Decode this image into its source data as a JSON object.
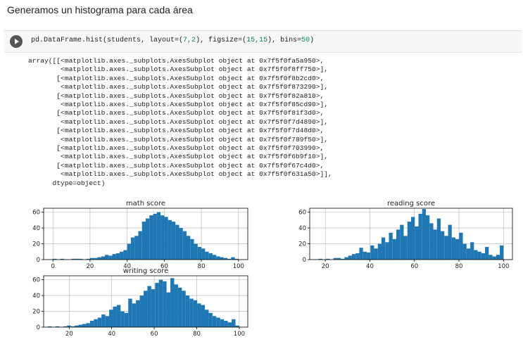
{
  "markdown": {
    "text": "Generamos un histograma para cada área"
  },
  "code_cell": {
    "prefix": "pd.DataFrame.hist(students, layout=(",
    "layout_val": "7,2",
    "mid": "), figsize=(",
    "figsize_val": "15,15",
    "mid2": "), bins=",
    "bins_val": "50",
    "suffix": ")"
  },
  "output_lines": [
    "array([[<matplotlib.axes._subplots.AxesSubplot object at 0x7f5f0fa5a950>,",
    "        <matplotlib.axes._subplots.AxesSubplot object at 0x7f5f0f8ff750>],",
    "       [<matplotlib.axes._subplots.AxesSubplot object at 0x7f5f0f8b2cd0>,",
    "        <matplotlib.axes._subplots.AxesSubplot object at 0x7f5f0f873290>],",
    "       [<matplotlib.axes._subplots.AxesSubplot object at 0x7f5f0f82a810>,",
    "        <matplotlib.axes._subplots.AxesSubplot object at 0x7f5f0f85cd90>],",
    "       [<matplotlib.axes._subplots.AxesSubplot object at 0x7f5f0f81f3d0>,",
    "        <matplotlib.axes._subplots.AxesSubplot object at 0x7f5f0f7d4890>],",
    "       [<matplotlib.axes._subplots.AxesSubplot object at 0x7f5f0f7d48d0>,",
    "        <matplotlib.axes._subplots.AxesSubplot object at 0x7f5f0f789f50>],",
    "       [<matplotlib.axes._subplots.AxesSubplot object at 0x7f5f0f703990>,",
    "        <matplotlib.axes._subplots.AxesSubplot object at 0x7f5f0f6b9f10>],",
    "       [<matplotlib.axes._subplots.AxesSubplot object at 0x7f5f0f67c4d0>,",
    "        <matplotlib.axes._subplots.AxesSubplot object at 0x7f5f0f631a50>]],",
    "      dtype=object)"
  ],
  "colors": {
    "bar": "#1f77b4",
    "grid": "#b0b0b0",
    "axis": "#000000"
  },
  "chart_data": [
    {
      "type": "bar",
      "title": "math score",
      "xlabel": "",
      "ylabel": "",
      "xlim": [
        -5,
        105
      ],
      "ylim": [
        0,
        65
      ],
      "xticks": [
        0,
        20,
        40,
        60,
        80,
        100
      ],
      "yticks": [
        0,
        20,
        40,
        60
      ],
      "bin_start": 0,
      "bin_width": 2,
      "values": [
        1,
        0,
        1,
        0,
        0,
        1,
        1,
        1,
        0,
        1,
        2,
        2,
        3,
        4,
        6,
        5,
        7,
        8,
        10,
        12,
        20,
        28,
        30,
        36,
        48,
        52,
        56,
        58,
        60,
        56,
        54,
        50,
        48,
        44,
        40,
        36,
        30,
        26,
        20,
        16,
        14,
        10,
        8,
        6,
        4,
        3,
        2,
        1,
        3,
        1
      ]
    },
    {
      "type": "bar",
      "title": "reading score",
      "xlabel": "",
      "ylabel": "",
      "xlim": [
        13,
        104
      ],
      "ylim": [
        0,
        65
      ],
      "xticks": [
        20,
        40,
        60,
        80,
        100
      ],
      "yticks": [
        0,
        20,
        40,
        60
      ],
      "bin_start": 17,
      "bin_width": 1.66,
      "values": [
        1,
        0,
        1,
        0,
        2,
        2,
        1,
        3,
        5,
        7,
        8,
        15,
        10,
        9,
        18,
        14,
        20,
        28,
        22,
        34,
        26,
        38,
        44,
        30,
        48,
        54,
        42,
        58,
        64,
        56,
        46,
        38,
        52,
        36,
        30,
        44,
        28,
        26,
        34,
        20,
        14,
        22,
        12,
        10,
        8,
        16,
        6,
        4,
        6,
        18
      ]
    },
    {
      "type": "bar",
      "title": "writing score",
      "xlabel": "",
      "ylabel": "",
      "xlim": [
        8,
        104
      ],
      "ylim": [
        0,
        65
      ],
      "xticks": [
        20,
        40,
        60,
        80,
        100
      ],
      "yticks": [
        0,
        20,
        40,
        60
      ],
      "bin_start": 10,
      "bin_width": 1.8,
      "values": [
        1,
        0,
        1,
        0,
        1,
        2,
        1,
        2,
        3,
        4,
        5,
        8,
        10,
        12,
        16,
        14,
        22,
        26,
        28,
        20,
        18,
        36,
        30,
        34,
        40,
        46,
        52,
        48,
        56,
        60,
        58,
        44,
        62,
        54,
        50,
        46,
        40,
        36,
        34,
        30,
        28,
        22,
        18,
        14,
        12,
        10,
        8,
        6,
        10,
        2
      ]
    }
  ]
}
